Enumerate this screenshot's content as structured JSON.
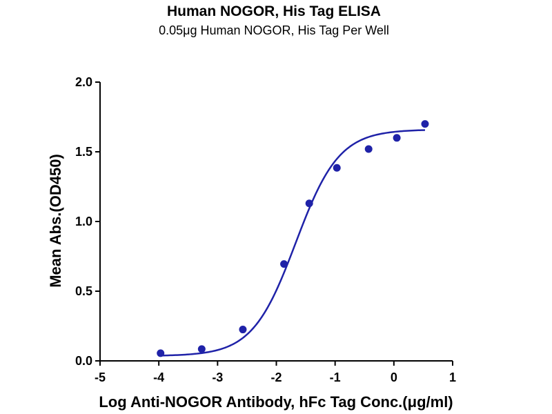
{
  "chart_data": {
    "type": "scatter",
    "title": "Human NOGOR, His Tag ELISA",
    "subtitle": "0.05μg Human NOGOR, His Tag Per Well",
    "xlabel": "Log Anti-NOGOR Antibody, hFc Tag Conc.(μg/ml)",
    "ylabel": "Mean Abs.(OD450)",
    "xlim": [
      -5,
      1
    ],
    "ylim": [
      0,
      2.0
    ],
    "x_ticks": [
      -5,
      -4,
      -3,
      -2,
      -1,
      0,
      1
    ],
    "x_tick_labels": [
      "-5",
      "-4",
      "-3",
      "-2",
      "-1",
      "0",
      "1"
    ],
    "y_ticks": [
      0,
      0.5,
      1.0,
      1.5,
      2.0
    ],
    "y_tick_labels": [
      "0.0",
      "0.5",
      "1.0",
      "1.5",
      "2.0"
    ],
    "grid": false,
    "colors": {
      "series": "#1f22a8",
      "axis": "#000000"
    },
    "series": [
      {
        "values_x": [
          -3.97,
          -3.27,
          -2.57,
          -1.87,
          -1.44,
          -0.97,
          -0.43,
          0.05,
          0.53
        ],
        "values_y": [
          0.055,
          0.085,
          0.225,
          0.695,
          1.13,
          1.385,
          1.52,
          1.6,
          1.7
        ],
        "fit": "four-parameter-logistic",
        "fit_params": {
          "bottom": 0.035,
          "top": 1.66,
          "log_ec50": -1.67,
          "hill_slope": 1.18
        }
      }
    ]
  }
}
